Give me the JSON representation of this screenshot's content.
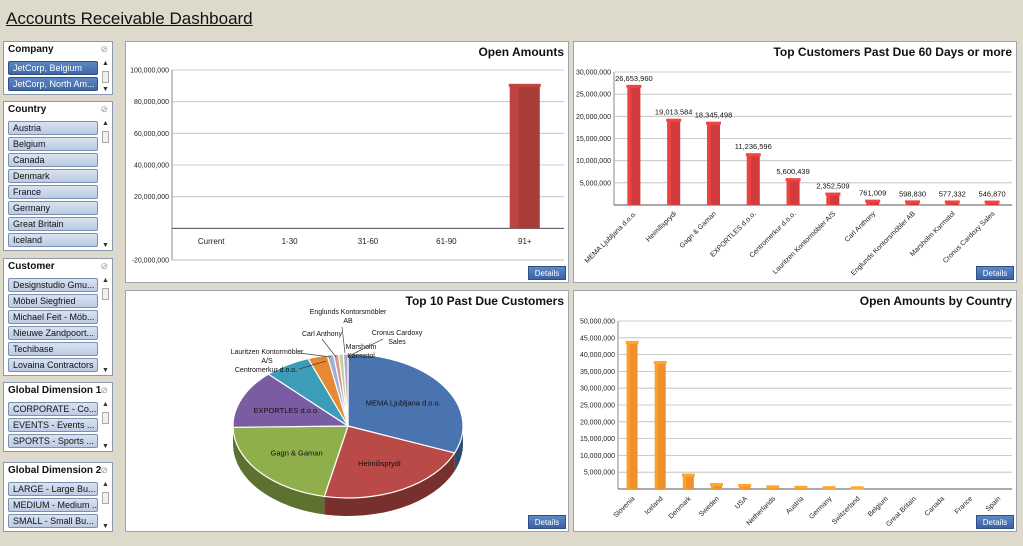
{
  "page": {
    "title": "Accounts Receivable Dashboard"
  },
  "slicers": [
    {
      "title": "Company",
      "items": [
        {
          "label": "JetCorp, Belgium",
          "selected": true
        },
        {
          "label": "JetCorp, North Am...",
          "selected": true
        }
      ]
    },
    {
      "title": "Country",
      "items": [
        {
          "label": "Austria"
        },
        {
          "label": "Belgium"
        },
        {
          "label": "Canada"
        },
        {
          "label": "Denmark"
        },
        {
          "label": "France"
        },
        {
          "label": "Germany"
        },
        {
          "label": "Great Britain"
        },
        {
          "label": "Iceland"
        }
      ]
    },
    {
      "title": "Customer",
      "items": [
        {
          "label": "Designstudio Gmu..."
        },
        {
          "label": "Möbel Siegfried"
        },
        {
          "label": "Michael Feit - Möb..."
        },
        {
          "label": "Nieuwe Zandpoort..."
        },
        {
          "label": "Techibase"
        },
        {
          "label": "Lovaina Contractors"
        }
      ]
    },
    {
      "title": "Global Dimension 1",
      "items": [
        {
          "label": "CORPORATE - Co..."
        },
        {
          "label": "EVENTS - Events ..."
        },
        {
          "label": "SPORTS - Sports ..."
        }
      ]
    },
    {
      "title": "Global Dimension 2",
      "items": [
        {
          "label": "LARGE - Large Bu..."
        },
        {
          "label": "MEDIUM - Medium ..."
        },
        {
          "label": "SMALL - Small Bu..."
        }
      ]
    }
  ],
  "panels": {
    "details_label": "Details",
    "open_amounts": {
      "title": "Open Amounts"
    },
    "top60": {
      "title": "Top Customers Past Due 60 Days or more"
    },
    "top10": {
      "title": "Top 10 Past Due Customers"
    },
    "by_country": {
      "title": "Open Amounts by Country"
    }
  },
  "chart_data": [
    {
      "id": "open_amounts",
      "type": "bar",
      "title": "Open Amounts",
      "categories": [
        "Current",
        "1-30",
        "31-60",
        "61-90",
        "91+"
      ],
      "values": [
        0,
        0,
        0,
        0,
        90000000
      ],
      "y_ticks": [
        "100,000,000",
        "80,000,000",
        "60,000,000",
        "40,000,000",
        "20,000,000",
        "",
        "-20,000,000"
      ],
      "ylim": [
        -20000000,
        100000000
      ],
      "grid": true,
      "color": "#a83c37"
    },
    {
      "id": "top60",
      "type": "bar",
      "title": "Top Customers Past Due 60 Days or more",
      "categories": [
        "MEMA Ljubljana d.o.o.",
        "Heimilisprydi",
        "Gagn & Gaman",
        "EXPORTLES d.o.o.",
        "Centromerkur d.o.o.",
        "Lauritzen Kontormöbler A/S",
        "Carl Anthony",
        "Englunds Kontorsmöbler AB",
        "Marsholm Karmstol",
        "Cronus Cardoxy Sales"
      ],
      "values": [
        26653960,
        19013584,
        18345498,
        11236596,
        5600439,
        2352509,
        761009,
        598830,
        577332,
        546870
      ],
      "data_labels": [
        "26,653,960",
        "19,013,584",
        "18,345,498",
        "11,236,596",
        "5,600,439",
        "2,352,509",
        "761,009",
        "598,830",
        "577,332",
        "546,870"
      ],
      "y_ticks": [
        "30,000,000",
        "25,000,000",
        "20,000,000",
        "15,000,000",
        "10,000,000",
        "5,000,000"
      ],
      "ylim": [
        0,
        30000000
      ],
      "grid": true,
      "color": "#d23b3b"
    },
    {
      "id": "top10",
      "type": "pie",
      "title": "Top 10 Past Due Customers",
      "slices": [
        {
          "label": "MEMA Ljubljana d.o.o.",
          "value": 26653960,
          "color": "#4a74b0"
        },
        {
          "label": "Heimilisprydi",
          "value": 19013584,
          "color": "#b94a48"
        },
        {
          "label": "Gagn & Gaman",
          "value": 18345498,
          "color": "#8fae4c"
        },
        {
          "label": "EXPORTLES d.o.o.",
          "value": 11236596,
          "color": "#7a5ca3"
        },
        {
          "label": "Centromerkur d.o.o.",
          "value": 5600439,
          "color": "#3d9cb7"
        },
        {
          "label": "Lauritzen Kontormöbler A/S",
          "value": 2352509,
          "color": "#e58a33"
        },
        {
          "label": "Carl Anthony",
          "value": 761009,
          "color": "#9cb2d6"
        },
        {
          "label": "Englunds Kontorsmöbler AB",
          "value": 598830,
          "color": "#d99794"
        },
        {
          "label": "Marsholm Karmstol",
          "value": 577332,
          "color": "#c0d39a"
        },
        {
          "label": "Cronus Cardoxy Sales",
          "value": 546870,
          "color": "#b3a2c9"
        }
      ],
      "outside_labels": [
        "Englunds Kontorsmöbler",
        "AB",
        "Carl Anthony",
        "Cronus Cardoxy",
        "Sales",
        "Lauritzen Kontormöbler",
        "A/S",
        "Marsholm",
        "Karmstol",
        "Centromerkur d.o.o."
      ]
    },
    {
      "id": "by_country",
      "type": "bar",
      "title": "Open Amounts by Country",
      "categories": [
        "Slovenia",
        "Iceland",
        "Denmark",
        "Sweden",
        "USA",
        "Netherlands",
        "Austria",
        "Germany",
        "Switzerland",
        "Belgium",
        "Great Britain",
        "Canada",
        "France",
        "Spain"
      ],
      "values": [
        43500000,
        37500000,
        4000000,
        1200000,
        900000,
        500000,
        350000,
        250000,
        200000,
        0,
        0,
        0,
        0,
        0
      ],
      "y_ticks": [
        "50,000,000",
        "45,000,000",
        "40,000,000",
        "35,000,000",
        "30,000,000",
        "25,000,000",
        "20,000,000",
        "15,000,000",
        "10,000,000",
        "5,000,000"
      ],
      "ylim": [
        0,
        50000000
      ],
      "grid": true,
      "color": "#f0902a"
    }
  ]
}
